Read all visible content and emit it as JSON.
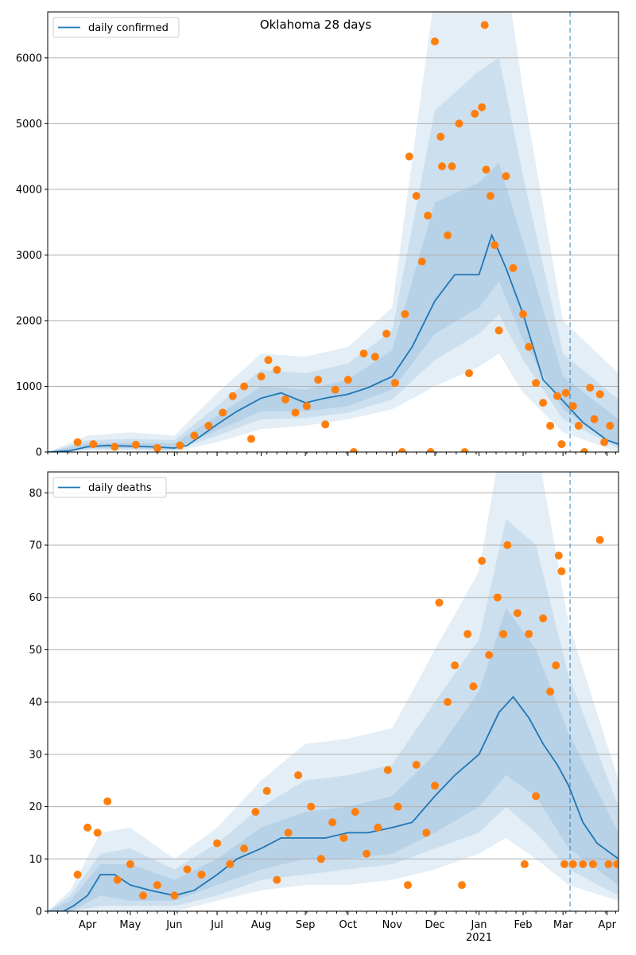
{
  "colors": {
    "line": "#1f77b4",
    "points": "#ff7f0e",
    "band": "#1f77b4",
    "grid": "#b0b0b0",
    "vline": "#1f77b4"
  },
  "x_axis": {
    "months": [
      "Apr",
      "May",
      "Jun",
      "Jul",
      "Aug",
      "Sep",
      "Oct",
      "Nov",
      "Dec",
      "Jan",
      "Feb",
      "Mar",
      "Apr"
    ],
    "year_label": "2021",
    "start": "2020-03-04",
    "end": "2021-04-09",
    "vline_date": "2021-03-06"
  },
  "chart_data": [
    {
      "type": "line",
      "title": "Oklahoma 28 days",
      "legend": "daily confirmed",
      "legend_position": "top-left",
      "ylim": [
        0,
        6700
      ],
      "yticks": [
        0,
        1000,
        2000,
        3000,
        4000,
        5000,
        6000
      ],
      "grid": "horizontal",
      "line": {
        "x": [
          "2020-03-04",
          "2020-03-20",
          "2020-04-01",
          "2020-04-15",
          "2020-05-01",
          "2020-05-15",
          "2020-06-01",
          "2020-06-10",
          "2020-06-20",
          "2020-07-01",
          "2020-07-15",
          "2020-08-01",
          "2020-08-15",
          "2020-09-01",
          "2020-09-15",
          "2020-10-01",
          "2020-10-15",
          "2020-11-01",
          "2020-11-15",
          "2020-12-01",
          "2020-12-15",
          "2021-01-01",
          "2021-01-10",
          "2021-01-20",
          "2021-02-01",
          "2021-02-15",
          "2021-03-01",
          "2021-03-15",
          "2021-04-01",
          "2021-04-09"
        ],
        "y": [
          0,
          20,
          80,
          100,
          90,
          80,
          60,
          100,
          250,
          420,
          620,
          820,
          900,
          750,
          820,
          880,
          980,
          1150,
          1600,
          2300,
          2700,
          2700,
          3300,
          2800,
          2100,
          1100,
          780,
          450,
          180,
          120
        ]
      },
      "bands": [
        {
          "x": [
            "2020-03-04",
            "2020-04-01",
            "2020-05-01",
            "2020-06-01",
            "2020-07-01",
            "2020-08-01",
            "2020-09-01",
            "2020-10-01",
            "2020-11-01",
            "2020-12-01",
            "2021-01-01",
            "2021-01-15",
            "2021-02-01",
            "2021-03-01",
            "2021-04-09"
          ],
          "lower": [
            0,
            20,
            20,
            10,
            150,
            350,
            400,
            500,
            650,
            1000,
            1300,
            1500,
            900,
            300,
            0
          ],
          "upper": [
            0,
            250,
            300,
            250,
            900,
            1500,
            1450,
            1600,
            2200,
            7000,
            7500,
            8000,
            5500,
            2000,
            1200
          ]
        },
        {
          "x": [
            "2020-03-04",
            "2020-04-01",
            "2020-05-01",
            "2020-06-01",
            "2020-07-01",
            "2020-08-01",
            "2020-09-01",
            "2020-10-01",
            "2020-11-01",
            "2020-12-01",
            "2021-01-01",
            "2021-01-15",
            "2021-02-01",
            "2021-03-01",
            "2021-04-09"
          ],
          "lower": [
            0,
            40,
            40,
            30,
            250,
            500,
            520,
            600,
            800,
            1400,
            1800,
            2100,
            1400,
            500,
            50
          ],
          "upper": [
            0,
            180,
            200,
            180,
            700,
            1250,
            1200,
            1350,
            1850,
            5200,
            5800,
            6000,
            4200,
            1500,
            800
          ]
        },
        {
          "x": [
            "2020-03-04",
            "2020-04-01",
            "2020-05-01",
            "2020-06-01",
            "2020-07-01",
            "2020-08-01",
            "2020-09-01",
            "2020-10-01",
            "2020-11-01",
            "2020-12-01",
            "2021-01-01",
            "2021-01-15",
            "2021-02-01",
            "2021-03-01",
            "2021-04-09"
          ],
          "lower": [
            0,
            60,
            60,
            40,
            330,
            620,
            620,
            700,
            950,
            1800,
            2200,
            2600,
            1700,
            650,
            80
          ],
          "upper": [
            0,
            130,
            140,
            130,
            550,
            1000,
            950,
            1100,
            1550,
            3800,
            4100,
            4400,
            3200,
            1150,
            500
          ]
        }
      ],
      "points": [
        {
          "x": "2020-03-25",
          "y": 150
        },
        {
          "x": "2020-04-05",
          "y": 120
        },
        {
          "x": "2020-04-20",
          "y": 80
        },
        {
          "x": "2020-05-05",
          "y": 110
        },
        {
          "x": "2020-05-20",
          "y": 60
        },
        {
          "x": "2020-06-05",
          "y": 100
        },
        {
          "x": "2020-06-15",
          "y": 250
        },
        {
          "x": "2020-06-25",
          "y": 400
        },
        {
          "x": "2020-07-05",
          "y": 600
        },
        {
          "x": "2020-07-12",
          "y": 850
        },
        {
          "x": "2020-07-20",
          "y": 1000
        },
        {
          "x": "2020-07-25",
          "y": 200
        },
        {
          "x": "2020-08-01",
          "y": 1150
        },
        {
          "x": "2020-08-06",
          "y": 1400
        },
        {
          "x": "2020-08-12",
          "y": 1250
        },
        {
          "x": "2020-08-18",
          "y": 800
        },
        {
          "x": "2020-08-25",
          "y": 600
        },
        {
          "x": "2020-09-02",
          "y": 700
        },
        {
          "x": "2020-09-10",
          "y": 1100
        },
        {
          "x": "2020-09-15",
          "y": 420
        },
        {
          "x": "2020-09-22",
          "y": 950
        },
        {
          "x": "2020-10-01",
          "y": 1100
        },
        {
          "x": "2020-10-05",
          "y": 0
        },
        {
          "x": "2020-10-12",
          "y": 1500
        },
        {
          "x": "2020-10-20",
          "y": 1450
        },
        {
          "x": "2020-10-28",
          "y": 1800
        },
        {
          "x": "2020-11-03",
          "y": 1050
        },
        {
          "x": "2020-11-08",
          "y": 0
        },
        {
          "x": "2020-11-10",
          "y": 2100
        },
        {
          "x": "2020-11-13",
          "y": 4500
        },
        {
          "x": "2020-11-18",
          "y": 3900
        },
        {
          "x": "2020-11-22",
          "y": 2900
        },
        {
          "x": "2020-11-26",
          "y": 3600
        },
        {
          "x": "2020-11-28",
          "y": 0
        },
        {
          "x": "2020-12-01",
          "y": 6250
        },
        {
          "x": "2020-12-05",
          "y": 4800
        },
        {
          "x": "2020-12-06",
          "y": 4350
        },
        {
          "x": "2020-12-10",
          "y": 3300
        },
        {
          "x": "2020-12-13",
          "y": 4350
        },
        {
          "x": "2020-12-18",
          "y": 5000
        },
        {
          "x": "2020-12-22",
          "y": 0
        },
        {
          "x": "2020-12-25",
          "y": 1200
        },
        {
          "x": "2020-12-29",
          "y": 5150
        },
        {
          "x": "2021-01-03",
          "y": 5250
        },
        {
          "x": "2021-01-05",
          "y": 6500
        },
        {
          "x": "2021-01-06",
          "y": 4300
        },
        {
          "x": "2021-01-09",
          "y": 3900
        },
        {
          "x": "2021-01-12",
          "y": 3150
        },
        {
          "x": "2021-01-15",
          "y": 1850
        },
        {
          "x": "2021-01-20",
          "y": 4200
        },
        {
          "x": "2021-01-25",
          "y": 2800
        },
        {
          "x": "2021-02-01",
          "y": 2100
        },
        {
          "x": "2021-02-05",
          "y": 1600
        },
        {
          "x": "2021-02-10",
          "y": 1050
        },
        {
          "x": "2021-02-15",
          "y": 750
        },
        {
          "x": "2021-02-20",
          "y": 400
        },
        {
          "x": "2021-02-25",
          "y": 850
        },
        {
          "x": "2021-02-28",
          "y": 120
        },
        {
          "x": "2021-03-03",
          "y": 900
        },
        {
          "x": "2021-03-08",
          "y": 700
        },
        {
          "x": "2021-03-12",
          "y": 400
        },
        {
          "x": "2021-03-16",
          "y": 0
        },
        {
          "x": "2021-03-20",
          "y": 980
        },
        {
          "x": "2021-03-23",
          "y": 500
        },
        {
          "x": "2021-03-27",
          "y": 880
        },
        {
          "x": "2021-03-30",
          "y": 150
        },
        {
          "x": "2021-04-03",
          "y": 400
        }
      ]
    },
    {
      "type": "line",
      "title": "",
      "legend": "daily deaths",
      "legend_position": "top-left",
      "ylim": [
        0,
        84
      ],
      "yticks": [
        0,
        10,
        20,
        30,
        40,
        50,
        60,
        70,
        80
      ],
      "grid": "horizontal",
      "line": {
        "x": [
          "2020-03-04",
          "2020-03-15",
          "2020-03-22",
          "2020-04-01",
          "2020-04-10",
          "2020-04-20",
          "2020-05-01",
          "2020-05-15",
          "2020-06-01",
          "2020-06-15",
          "2020-07-01",
          "2020-07-15",
          "2020-08-01",
          "2020-08-15",
          "2020-09-01",
          "2020-09-15",
          "2020-10-01",
          "2020-10-15",
          "2020-11-01",
          "2020-11-15",
          "2020-12-01",
          "2020-12-15",
          "2021-01-01",
          "2021-01-15",
          "2021-01-25",
          "2021-02-05",
          "2021-02-15",
          "2021-02-25",
          "2021-03-05",
          "2021-03-15",
          "2021-03-25",
          "2021-04-09"
        ],
        "y": [
          0,
          0,
          1,
          3,
          7,
          7,
          5,
          4,
          3,
          4,
          7,
          10,
          12,
          14,
          14,
          14,
          15,
          15,
          16,
          17,
          22,
          26,
          30,
          38,
          41,
          37,
          32,
          28,
          24,
          17,
          13,
          10
        ]
      },
      "bands": [
        {
          "x": [
            "2020-03-04",
            "2020-03-20",
            "2020-04-10",
            "2020-05-01",
            "2020-06-01",
            "2020-07-01",
            "2020-08-01",
            "2020-09-01",
            "2020-10-01",
            "2020-11-01",
            "2020-12-01",
            "2021-01-01",
            "2021-01-20",
            "2021-02-10",
            "2021-03-05",
            "2021-04-09"
          ],
          "lower": [
            0,
            0,
            0,
            0,
            0,
            2,
            4,
            5,
            5,
            6,
            8,
            11,
            14,
            10,
            5,
            2
          ],
          "upper": [
            0,
            4,
            15,
            16,
            10,
            16,
            25,
            32,
            33,
            35,
            50,
            65,
            95,
            90,
            55,
            25
          ]
        },
        {
          "x": [
            "2020-03-04",
            "2020-03-20",
            "2020-04-10",
            "2020-05-01",
            "2020-06-01",
            "2020-07-01",
            "2020-08-01",
            "2020-09-01",
            "2020-10-01",
            "2020-11-01",
            "2020-12-01",
            "2021-01-01",
            "2021-01-20",
            "2021-02-10",
            "2021-03-05",
            "2021-04-09"
          ],
          "lower": [
            0,
            0,
            1,
            1,
            1,
            3,
            6,
            7,
            8,
            9,
            12,
            15,
            20,
            15,
            8,
            3
          ],
          "upper": [
            0,
            3,
            11,
            12,
            8,
            13,
            20,
            25,
            26,
            28,
            40,
            52,
            75,
            70,
            45,
            20
          ]
        },
        {
          "x": [
            "2020-03-04",
            "2020-03-20",
            "2020-04-10",
            "2020-05-01",
            "2020-06-01",
            "2020-07-01",
            "2020-08-01",
            "2020-09-01",
            "2020-10-01",
            "2020-11-01",
            "2020-12-01",
            "2021-01-01",
            "2021-01-20",
            "2021-02-10",
            "2021-03-05",
            "2021-04-09"
          ],
          "lower": [
            0,
            0,
            3,
            2,
            2,
            5,
            8,
            10,
            10,
            11,
            15,
            20,
            26,
            22,
            12,
            5
          ],
          "upper": [
            0,
            2,
            9,
            9,
            6,
            10,
            16,
            19,
            20,
            22,
            30,
            42,
            58,
            50,
            34,
            15
          ]
        }
      ],
      "points": [
        {
          "x": "2020-03-25",
          "y": 7
        },
        {
          "x": "2020-04-01",
          "y": 16
        },
        {
          "x": "2020-04-08",
          "y": 15
        },
        {
          "x": "2020-04-15",
          "y": 21
        },
        {
          "x": "2020-04-22",
          "y": 6
        },
        {
          "x": "2020-05-01",
          "y": 9
        },
        {
          "x": "2020-05-10",
          "y": 3
        },
        {
          "x": "2020-05-20",
          "y": 5
        },
        {
          "x": "2020-06-01",
          "y": 3
        },
        {
          "x": "2020-06-10",
          "y": 8
        },
        {
          "x": "2020-06-20",
          "y": 7
        },
        {
          "x": "2020-07-01",
          "y": 13
        },
        {
          "x": "2020-07-10",
          "y": 9
        },
        {
          "x": "2020-07-20",
          "y": 12
        },
        {
          "x": "2020-07-28",
          "y": 19
        },
        {
          "x": "2020-08-05",
          "y": 23
        },
        {
          "x": "2020-08-12",
          "y": 6
        },
        {
          "x": "2020-08-20",
          "y": 15
        },
        {
          "x": "2020-08-27",
          "y": 26
        },
        {
          "x": "2020-09-05",
          "y": 20
        },
        {
          "x": "2020-09-12",
          "y": 10
        },
        {
          "x": "2020-09-20",
          "y": 17
        },
        {
          "x": "2020-09-28",
          "y": 14
        },
        {
          "x": "2020-10-06",
          "y": 19
        },
        {
          "x": "2020-10-14",
          "y": 11
        },
        {
          "x": "2020-10-22",
          "y": 16
        },
        {
          "x": "2020-10-29",
          "y": 27
        },
        {
          "x": "2020-11-05",
          "y": 20
        },
        {
          "x": "2020-11-12",
          "y": 5
        },
        {
          "x": "2020-11-18",
          "y": 28
        },
        {
          "x": "2020-11-25",
          "y": 15
        },
        {
          "x": "2020-12-01",
          "y": 24
        },
        {
          "x": "2020-12-04",
          "y": 59
        },
        {
          "x": "2020-12-10",
          "y": 40
        },
        {
          "x": "2020-12-15",
          "y": 47
        },
        {
          "x": "2020-12-20",
          "y": 5
        },
        {
          "x": "2020-12-24",
          "y": 53
        },
        {
          "x": "2020-12-28",
          "y": 43
        },
        {
          "x": "2021-01-03",
          "y": 67
        },
        {
          "x": "2021-01-08",
          "y": 49
        },
        {
          "x": "2021-01-14",
          "y": 60
        },
        {
          "x": "2021-01-18",
          "y": 53
        },
        {
          "x": "2021-01-21",
          "y": 70
        },
        {
          "x": "2021-01-28",
          "y": 57
        },
        {
          "x": "2021-02-02",
          "y": 9
        },
        {
          "x": "2021-02-05",
          "y": 53
        },
        {
          "x": "2021-02-10",
          "y": 22
        },
        {
          "x": "2021-02-15",
          "y": 56
        },
        {
          "x": "2021-02-20",
          "y": 42
        },
        {
          "x": "2021-02-24",
          "y": 47
        },
        {
          "x": "2021-02-26",
          "y": 68
        },
        {
          "x": "2021-02-28",
          "y": 65
        },
        {
          "x": "2021-03-02",
          "y": 9
        },
        {
          "x": "2021-03-08",
          "y": 9
        },
        {
          "x": "2021-03-15",
          "y": 9
        },
        {
          "x": "2021-03-22",
          "y": 9
        },
        {
          "x": "2021-03-27",
          "y": 71
        },
        {
          "x": "2021-04-02",
          "y": 9
        },
        {
          "x": "2021-04-08",
          "y": 9
        }
      ]
    }
  ]
}
